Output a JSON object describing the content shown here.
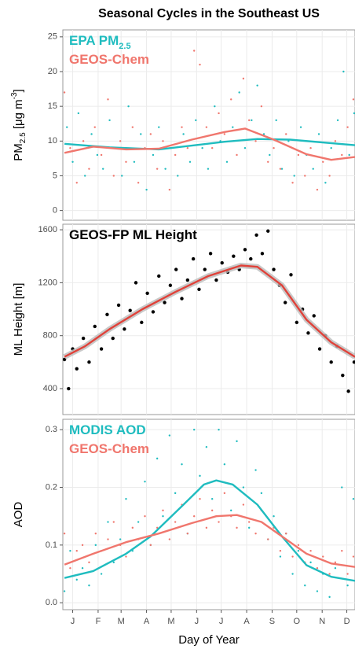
{
  "chart_data": [
    {
      "type": "scatter",
      "title": "Seasonal Cycles in the Southeast US",
      "ylabel": [
        "PM",
        "2.5",
        " [μg m",
        "-3",
        "]"
      ],
      "ylim": [
        -1.4,
        26
      ],
      "yticks": [
        0,
        5,
        10,
        15,
        20,
        25
      ],
      "grid": true,
      "series": [
        {
          "name": "EPA PM",
          "name_sub": "2.5",
          "color": "#1fbcbf",
          "points": {
            "x": [
              8,
              15,
              22,
              30,
              38,
              45,
              52,
              60,
              68,
              75,
              83,
              90,
              98,
              105,
              113,
              120,
              128,
              135,
              143,
              150,
              158,
              165,
              173,
              180,
              188,
              195,
              203,
              210,
              218,
              225,
              233,
              240,
              248,
              255,
              263,
              270,
              278,
              285,
              293,
              300,
              308,
              315,
              323,
              330,
              338,
              345,
              352,
              358
            ],
            "values": [
              12,
              7,
              14,
              5,
              11,
              8,
              6,
              13,
              9,
              5,
              15,
              7,
              11,
              3,
              8,
              12,
              6,
              9,
              5,
              11,
              7,
              13,
              9,
              6,
              15,
              10,
              7,
              12,
              17,
              9,
              13,
              18,
              11,
              8,
              13,
              6,
              10,
              5,
              12,
              8,
              6,
              11,
              4,
              9,
              13,
              20,
              8,
              14
            ]
          },
          "smooth": {
            "x": [
              5,
              60,
              120,
              200,
              240,
              280,
              359
            ],
            "values": [
              9.6,
              9.1,
              8.8,
              9.9,
              10.3,
              10.2,
              9.4
            ]
          }
        },
        {
          "name": "GEOS-Chem",
          "color": "#f0766d",
          "points": {
            "x": [
              5,
              12,
              20,
              28,
              35,
              42,
              50,
              58,
              65,
              73,
              80,
              88,
              95,
              103,
              110,
              118,
              125,
              133,
              140,
              148,
              155,
              163,
              170,
              178,
              185,
              193,
              200,
              208,
              215,
              223,
              230,
              238,
              245,
              253,
              260,
              268,
              275,
              283,
              290,
              298,
              305,
              313,
              320,
              328,
              335,
              343,
              350,
              357
            ],
            "values": [
              17,
              9,
              4,
              10,
              6,
              12,
              8,
              16,
              5,
              10,
              7,
              12,
              4,
              9,
              11,
              6,
              10,
              3,
              8,
              12,
              9,
              23,
              21,
              12,
              9,
              14,
              11,
              16,
              8,
              19,
              13,
              10,
              15,
              7,
              9,
              6,
              11,
              4,
              8,
              5,
              9,
              3,
              7,
              5,
              10,
              8,
              12,
              16
            ]
          },
          "smooth": {
            "x": [
              5,
              40,
              80,
              120,
              160,
              200,
              225,
              260,
              300,
              330,
              359
            ],
            "values": [
              8.3,
              9.2,
              8.8,
              8.9,
              10.2,
              11.3,
              11.8,
              10.2,
              8.1,
              7.3,
              7.7
            ]
          }
        }
      ]
    },
    {
      "type": "scatter",
      "ylabel": [
        "ML Height [m]"
      ],
      "ylim": [
        204,
        1642
      ],
      "yticks": [
        400,
        800,
        1200,
        1600
      ],
      "grid": true,
      "series": [
        {
          "name": "GEOS-FP ML Height",
          "color": "#000000",
          "line_color": "#e0423a",
          "points": {
            "x": [
              5,
              10,
              15,
              20,
              28,
              35,
              42,
              50,
              57,
              64,
              71,
              78,
              85,
              92,
              99,
              106,
              113,
              120,
              127,
              134,
              141,
              148,
              155,
              162,
              169,
              176,
              183,
              190,
              197,
              204,
              211,
              218,
              225,
              232,
              239,
              246,
              253,
              260,
              267,
              274,
              281,
              288,
              295,
              302,
              309,
              316,
              323,
              330,
              337,
              344,
              351,
              358
            ],
            "values": [
              620,
              400,
              700,
              550,
              780,
              600,
              870,
              700,
              960,
              780,
              1030,
              850,
              990,
              1200,
              900,
              1120,
              980,
              1250,
              1050,
              1180,
              1300,
              1080,
              1220,
              1380,
              1150,
              1300,
              1420,
              1220,
              1350,
              1280,
              1400,
              1300,
              1450,
              1380,
              1560,
              1420,
              1590,
              1300,
              1180,
              1050,
              1260,
              900,
              1000,
              820,
              950,
              700,
              800,
              600,
              720,
              500,
              380,
              600
            ]
          },
          "smooth": {
            "x": [
              5,
              30,
              60,
              100,
              140,
              180,
              220,
              240,
              270,
              300,
              330,
              359
            ],
            "values": [
              640,
              720,
              850,
              1000,
              1130,
              1250,
              1330,
              1320,
              1180,
              920,
              750,
              640
            ]
          }
        }
      ]
    },
    {
      "type": "scatter",
      "ylabel": [
        "AOD"
      ],
      "xlabel": "Day of Year",
      "ylim": [
        -0.012,
        0.318
      ],
      "yticks": [
        {
          "value": 0,
          "label": "0.0"
        },
        0.1,
        0.2,
        0.3
      ],
      "grid": true,
      "xlim": [
        3,
        359
      ],
      "xticks": [
        {
          "value": 15,
          "label": "J"
        },
        {
          "value": 46,
          "label": "F"
        },
        {
          "value": 74,
          "label": "M"
        },
        {
          "value": 105,
          "label": "A"
        },
        {
          "value": 135,
          "label": "M"
        },
        {
          "value": 166,
          "label": "J"
        },
        {
          "value": 196,
          "label": "J"
        },
        {
          "value": 227,
          "label": "A"
        },
        {
          "value": 258,
          "label": "S"
        },
        {
          "value": 288,
          "label": "O"
        },
        {
          "value": 319,
          "label": "N"
        },
        {
          "value": 349,
          "label": "D"
        }
      ],
      "series": [
        {
          "name": "MODIS AOD",
          "color": "#1fbcbf",
          "points": {
            "x": [
              5,
              12,
              20,
              27,
              35,
              43,
              50,
              58,
              65,
              73,
              80,
              88,
              95,
              103,
              110,
              118,
              125,
              133,
              140,
              148,
              155,
              163,
              170,
              178,
              185,
              193,
              200,
              208,
              215,
              223,
              230,
              238,
              245,
              253,
              260,
              268,
              275,
              283,
              290,
              298,
              305,
              313,
              320,
              328,
              335,
              343,
              350,
              357
            ],
            "values": [
              0.02,
              0.09,
              0.04,
              0.06,
              0.03,
              0.1,
              0.05,
              0.14,
              0.07,
              0.11,
              0.18,
              0.09,
              0.14,
              0.21,
              0.1,
              0.25,
              0.15,
              0.29,
              0.19,
              0.24,
              0.12,
              0.3,
              0.22,
              0.27,
              0.18,
              0.3,
              0.24,
              0.16,
              0.28,
              0.2,
              0.13,
              0.23,
              0.19,
              0.11,
              0.15,
              0.08,
              0.12,
              0.05,
              0.09,
              0.03,
              0.07,
              0.02,
              0.05,
              0.01,
              0.06,
              0.2,
              0.03,
              0.18
            ]
          },
          "smooth": {
            "x": [
              5,
              40,
              80,
              110,
              150,
              175,
              190,
              210,
              240,
              270,
              300,
              330,
              359
            ],
            "values": [
              0.043,
              0.055,
              0.085,
              0.115,
              0.17,
              0.205,
              0.212,
              0.205,
              0.17,
              0.115,
              0.065,
              0.045,
              0.038
            ]
          }
        },
        {
          "name": "GEOS-Chem",
          "color": "#f0766d",
          "points": {
            "x": [
              5,
              12,
              20,
              27,
              35,
              43,
              50,
              58,
              65,
              73,
              80,
              88,
              95,
              103,
              110,
              118,
              125,
              133,
              140,
              148,
              155,
              163,
              170,
              178,
              185,
              193,
              200,
              208,
              215,
              223,
              230,
              238,
              245,
              253,
              260,
              268,
              275,
              283,
              290,
              298,
              305,
              313,
              320,
              328,
              335,
              343,
              350,
              357
            ],
            "values": [
              0.12,
              0.06,
              0.09,
              0.1,
              0.07,
              0.12,
              0.09,
              0.11,
              0.14,
              0.1,
              0.08,
              0.13,
              0.11,
              0.15,
              0.1,
              0.13,
              0.16,
              0.11,
              0.14,
              0.17,
              0.12,
              0.15,
              0.18,
              0.13,
              0.16,
              0.14,
              0.19,
              0.15,
              0.13,
              0.17,
              0.14,
              0.12,
              0.16,
              0.11,
              0.13,
              0.09,
              0.12,
              0.08,
              0.1,
              0.07,
              0.09,
              0.06,
              0.08,
              0.05,
              0.07,
              0.09,
              0.05,
              0.08
            ]
          },
          "smooth": {
            "x": [
              5,
              40,
              80,
              120,
              160,
              190,
              215,
              245,
              270,
              300,
              330,
              359
            ],
            "values": [
              0.066,
              0.085,
              0.105,
              0.12,
              0.138,
              0.15,
              0.152,
              0.14,
              0.115,
              0.085,
              0.068,
              0.062
            ]
          }
        }
      ]
    }
  ]
}
